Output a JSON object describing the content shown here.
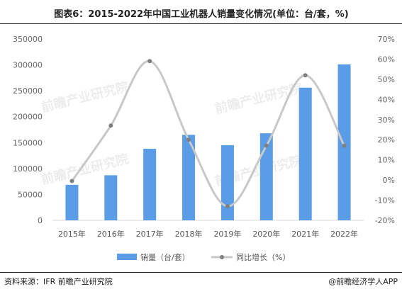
{
  "title": "图表6：2015-2022年中国工业机器人销量变化情况(单位：台/套，%)",
  "source": "资料来源：IFR 前瞻产业研究院",
  "credit": "@前瞻经济学人APP",
  "watermark": "前瞻产业研究院",
  "chart_data": {
    "type": "bar",
    "categories": [
      "2015年",
      "2016年",
      "2017年",
      "2018年",
      "2019年",
      "2020年",
      "2021年",
      "2022年"
    ],
    "series": [
      {
        "name": "销量（台/套）",
        "type": "bar",
        "axis": "left",
        "color": "#5b9ce6",
        "values": [
          68500,
          87000,
          138000,
          165000,
          145000,
          168000,
          256000,
          301000
        ]
      },
      {
        "name": "同比增长（%）",
        "type": "line",
        "axis": "right",
        "color": "#c8c8c8",
        "marker_color": "#7f7f7f",
        "values": [
          -0.5,
          27,
          59,
          20,
          -13,
          17,
          52,
          17
        ]
      }
    ],
    "left_axis": {
      "min": 0,
      "max": 350000,
      "ticks": [
        "0",
        "50000",
        "100000",
        "150000",
        "200000",
        "250000",
        "300000",
        "350000"
      ]
    },
    "right_axis": {
      "min": -20,
      "max": 70,
      "ticks": [
        "-20%",
        "-10%",
        "0%",
        "10%",
        "20%",
        "30%",
        "40%",
        "50%",
        "60%",
        "70%"
      ]
    },
    "legend_position": "bottom",
    "grid": false
  }
}
